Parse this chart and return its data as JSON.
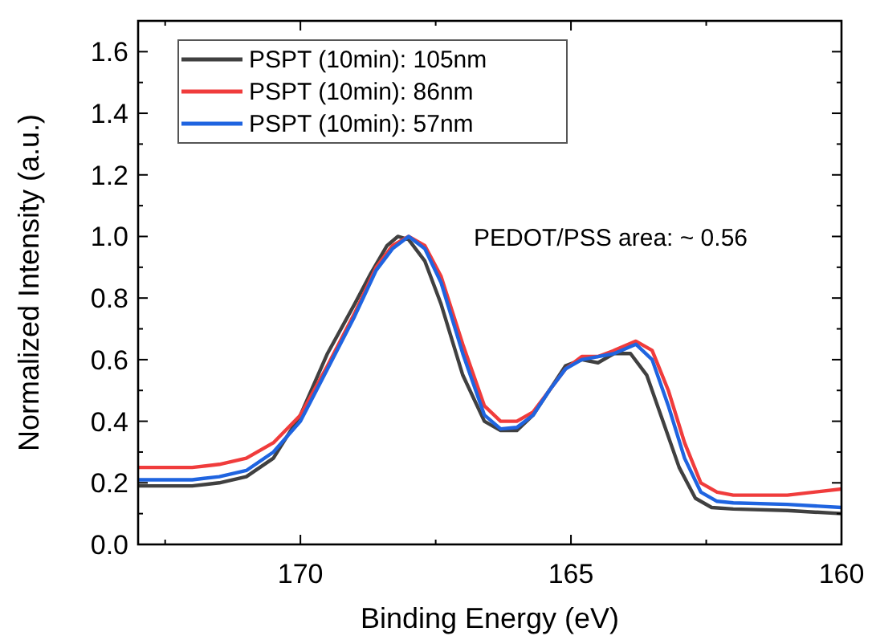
{
  "chart_data": {
    "type": "line",
    "xlabel": "Binding Energy (eV)",
    "ylabel": "Normalized Intensity (a.u.)",
    "xlim": [
      173,
      160
    ],
    "ylim": [
      0,
      1.7
    ],
    "xticks": [
      {
        "value": 172.5,
        "label": null
      },
      170,
      {
        "value": 167.5,
        "label": null
      },
      165,
      {
        "value": 162.5,
        "label": null
      },
      160
    ],
    "yticks": [
      {
        "value": 0,
        "label": "0.0"
      },
      {
        "value": 0.1,
        "label": null
      },
      0.2,
      {
        "value": 0.3,
        "label": null
      },
      0.4,
      {
        "value": 0.5,
        "label": null
      },
      0.6,
      {
        "value": 0.7,
        "label": null
      },
      0.8,
      {
        "value": 0.9,
        "label": null
      },
      {
        "value": 1,
        "label": "1.0"
      },
      {
        "value": 1.1,
        "label": null
      },
      1.2,
      {
        "value": 1.3,
        "label": null
      },
      1.4,
      {
        "value": 1.5,
        "label": null
      },
      1.6
    ],
    "grid": false,
    "legend": "top left",
    "line_style": "solid",
    "marker": "none",
    "annotations": [
      "PEDOT/PSS area: ~ 0.56"
    ],
    "series": [
      {
        "name": "PSPT (10min): 105nm",
        "color": "#404040",
        "x": [
          173,
          172,
          171.5,
          171,
          170.5,
          170,
          169.5,
          169,
          168.7,
          168.4,
          168.2,
          168,
          167.7,
          167.4,
          167,
          166.6,
          166.3,
          166,
          165.7,
          165.4,
          165.1,
          164.8,
          164.5,
          164.2,
          163.9,
          163.6,
          163.3,
          163,
          162.7,
          162.4,
          162,
          161,
          160
        ],
        "values": [
          0.19,
          0.19,
          0.2,
          0.22,
          0.28,
          0.42,
          0.62,
          0.78,
          0.88,
          0.97,
          1.0,
          0.99,
          0.92,
          0.78,
          0.55,
          0.4,
          0.37,
          0.37,
          0.42,
          0.5,
          0.58,
          0.6,
          0.59,
          0.62,
          0.62,
          0.55,
          0.4,
          0.25,
          0.15,
          0.12,
          0.115,
          0.11,
          0.1
        ]
      },
      {
        "name": "PSPT (10min): 86nm",
        "color": "#f03c3c",
        "x": [
          173,
          172,
          171.5,
          171,
          170.5,
          170,
          169.5,
          169,
          168.6,
          168.3,
          168,
          167.7,
          167.4,
          167,
          166.6,
          166.3,
          166,
          165.7,
          165.4,
          165.1,
          164.8,
          164.5,
          164.2,
          163.8,
          163.5,
          163.2,
          162.9,
          162.6,
          162.3,
          162,
          161,
          160
        ],
        "values": [
          0.25,
          0.25,
          0.26,
          0.28,
          0.33,
          0.42,
          0.58,
          0.75,
          0.9,
          0.97,
          1.0,
          0.97,
          0.87,
          0.65,
          0.45,
          0.4,
          0.4,
          0.43,
          0.5,
          0.57,
          0.61,
          0.61,
          0.63,
          0.66,
          0.63,
          0.5,
          0.33,
          0.2,
          0.17,
          0.16,
          0.16,
          0.18
        ]
      },
      {
        "name": "PSPT (10min): 57nm",
        "color": "#1f64e0",
        "x": [
          173,
          172,
          171.5,
          171,
          170.5,
          170,
          169.5,
          169,
          168.6,
          168.3,
          168,
          167.7,
          167.4,
          167,
          166.6,
          166.3,
          166,
          165.7,
          165.4,
          165.1,
          164.8,
          164.5,
          164.2,
          163.8,
          163.5,
          163.2,
          162.9,
          162.6,
          162.3,
          162,
          161,
          160
        ],
        "values": [
          0.21,
          0.21,
          0.22,
          0.24,
          0.3,
          0.4,
          0.57,
          0.74,
          0.89,
          0.96,
          1.0,
          0.96,
          0.85,
          0.62,
          0.42,
          0.375,
          0.38,
          0.42,
          0.5,
          0.57,
          0.6,
          0.61,
          0.62,
          0.65,
          0.6,
          0.45,
          0.28,
          0.17,
          0.14,
          0.135,
          0.13,
          0.12
        ]
      }
    ]
  }
}
